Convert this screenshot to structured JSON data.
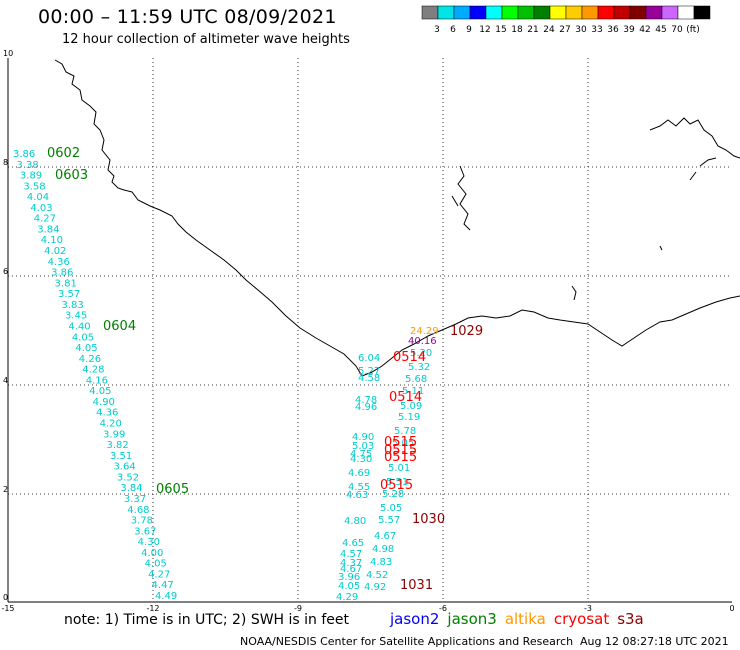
{
  "header": {
    "title": "00:00 – 11:59 UTC 08/09/2021",
    "subtitle": "12 hour collection of altimeter wave heights"
  },
  "colorbar": {
    "colors": [
      "#7f7f7f",
      "#00e6e6",
      "#00aaff",
      "#0000ff",
      "#00ffff",
      "#00ff00",
      "#00c000",
      "#008000",
      "#ffff00",
      "#ffcc00",
      "#ff9900",
      "#ff0000",
      "#c00000",
      "#800000",
      "#990099",
      "#cc66ff",
      "#ffffff",
      "#000000"
    ],
    "labels": [
      "3",
      "6",
      "9",
      "12",
      "15",
      "18",
      "21",
      "24",
      "27",
      "30",
      "33",
      "36",
      "39",
      "42",
      "45",
      "70",
      "(ft)"
    ]
  },
  "axes": {
    "x_ticks": [
      "-15",
      "-12",
      "-9",
      "-6",
      "-3",
      "0"
    ],
    "y_ticks": [
      "10",
      "8",
      "6",
      "4",
      "2",
      "0"
    ]
  },
  "track_labels": [
    {
      "text": "0602",
      "color": "#008000"
    },
    {
      "text": "0603",
      "color": "#008000"
    },
    {
      "text": "0604",
      "color": "#008000"
    },
    {
      "text": "0605",
      "color": "#008000"
    },
    {
      "text": "0514",
      "color": "#ff0000"
    },
    {
      "text": "0514",
      "color": "#ff0000"
    },
    {
      "text": "0515",
      "color": "#ff0000"
    },
    {
      "text": "1029",
      "color": "#8b0000"
    },
    {
      "text": "1030",
      "color": "#8b0000"
    },
    {
      "text": "1031",
      "color": "#8b0000"
    }
  ],
  "track1_values": [
    "3.86",
    "3.38",
    "3.89",
    "3.58",
    "4.04",
    "4.03",
    "4.27",
    "3.84",
    "4.10",
    "4.02",
    "4.36",
    "3.86",
    "3.81",
    "3.57",
    "3.83",
    "3.45",
    "4.40",
    "4.05",
    "4.05",
    "4.26",
    "4.28",
    "4.16",
    "4.05",
    "4.90",
    "4.36",
    "4.20",
    "3.99",
    "3.82",
    "3.51",
    "3.64",
    "3.52",
    "3.84",
    "3.37",
    "4.68",
    "3.78",
    "3.67",
    "4.30",
    "4.00",
    "4.05",
    "4.27",
    "4.47",
    "4.49"
  ],
  "track2_values": [
    "6.04",
    "5.27",
    "4.58",
    "4.78",
    "4.96",
    "4.90",
    "5.03",
    "4.75",
    "4.30",
    "4.69",
    "4.55",
    "4.63",
    "4.80",
    "4.65",
    "4.57",
    "4.37",
    "4.67",
    "3.96",
    "4.05",
    "4.29"
  ],
  "track3_values": [
    "24.29",
    "40.16",
    "5.20",
    "5.32",
    "5.68",
    "5.11",
    "5.09",
    "5.19",
    "5.78",
    "5.05",
    "5.01",
    "5.51",
    "5.28",
    "5.05",
    "5.57",
    "4.67",
    "4.98",
    "4.83",
    "4.52",
    "4.92"
  ],
  "note": "note:  1) Time is in UTC;  2) SWH is in feet",
  "satellites": [
    {
      "name": "jason2",
      "color": "#0000ff"
    },
    {
      "name": "jason3",
      "color": "#008000"
    },
    {
      "name": "altika",
      "color": "#ff9900"
    },
    {
      "name": "cryosat",
      "color": "#ff0000"
    },
    {
      "name": "s3a",
      "color": "#8b0000"
    }
  ],
  "footer": {
    "credit": "NOAA/NESDIS Center for Satellite Applications and Research",
    "timestamp": "Aug 12 08:27:18 UTC 2021"
  }
}
